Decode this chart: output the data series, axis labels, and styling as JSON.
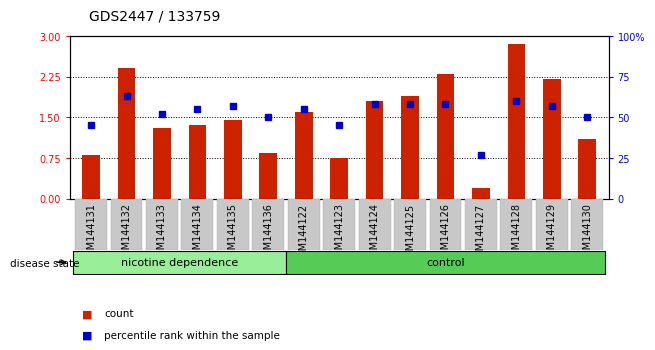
{
  "title": "GDS2447 / 133759",
  "samples": [
    "GSM144131",
    "GSM144132",
    "GSM144133",
    "GSM144134",
    "GSM144135",
    "GSM144136",
    "GSM144122",
    "GSM144123",
    "GSM144124",
    "GSM144125",
    "GSM144126",
    "GSM144127",
    "GSM144128",
    "GSM144129",
    "GSM144130"
  ],
  "counts": [
    0.8,
    2.4,
    1.3,
    1.35,
    1.45,
    0.85,
    1.6,
    0.75,
    1.8,
    1.9,
    2.3,
    0.2,
    2.85,
    2.2,
    1.1
  ],
  "percentiles": [
    45,
    63,
    52,
    55,
    57,
    50,
    55,
    45,
    58,
    58,
    58,
    27,
    60,
    57,
    50
  ],
  "bar_color": "#cc2200",
  "dot_color": "#0000cc",
  "left_ylim": [
    0,
    3
  ],
  "right_ylim": [
    0,
    100
  ],
  "left_yticks": [
    0,
    0.75,
    1.5,
    2.25,
    3
  ],
  "right_yticks": [
    0,
    25,
    50,
    75,
    100
  ],
  "right_yticklabels": [
    "0",
    "25",
    "50",
    "75",
    "100%"
  ],
  "nicotine_count": 6,
  "control_count": 9,
  "nicotine_color": "#99ee99",
  "control_color": "#55cc55",
  "label_bg_color": "#c8c8c8",
  "disease_label": "disease state",
  "nicotine_text": "nicotine dependence",
  "control_text": "control",
  "legend_count": "count",
  "legend_percentile": "percentile rank within the sample",
  "title_fontsize": 10,
  "tick_fontsize": 7,
  "bar_width": 0.5
}
